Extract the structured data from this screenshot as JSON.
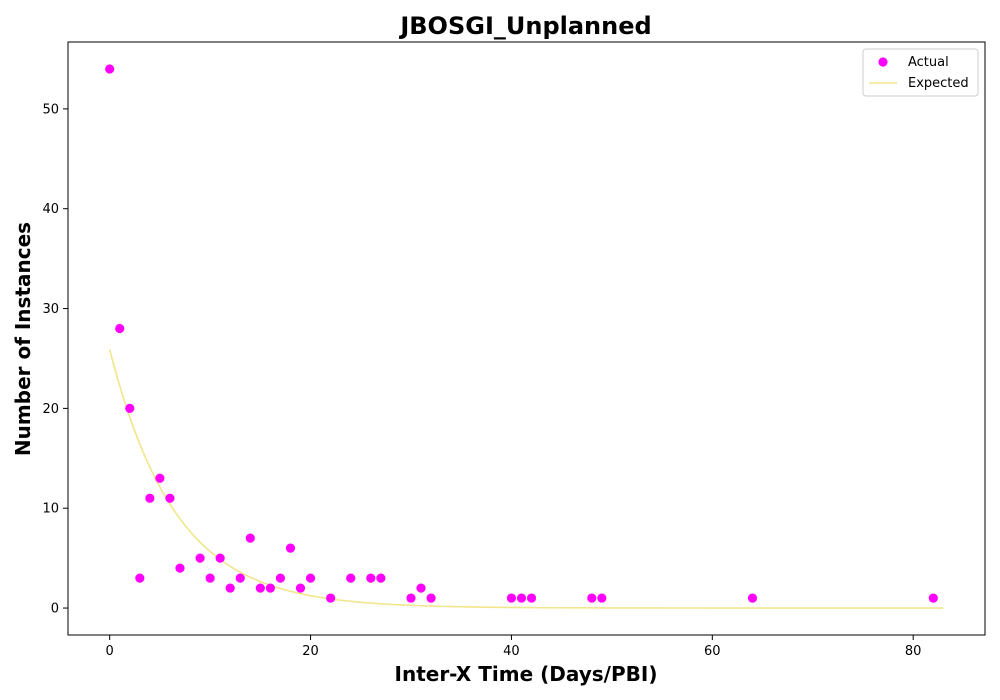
{
  "chart_data": {
    "type": "scatter",
    "title": "JBOSGI_Unplanned",
    "xlabel": "Inter-X Time (Days/PBI)",
    "ylabel": "Number of Instances",
    "xlim": [
      -4.15,
      87.15
    ],
    "ylim": [
      -2.7,
      56.7
    ],
    "x_ticks": [
      0,
      20,
      40,
      60,
      80
    ],
    "y_ticks": [
      0,
      10,
      20,
      30,
      40,
      50
    ],
    "grid": false,
    "legend_position": "top-right",
    "series": [
      {
        "name": "Actual",
        "kind": "scatter",
        "color": "#ff00ff",
        "points": [
          [
            0,
            54
          ],
          [
            1,
            28
          ],
          [
            2,
            20
          ],
          [
            3,
            3
          ],
          [
            4,
            11
          ],
          [
            5,
            13
          ],
          [
            6,
            11
          ],
          [
            7,
            4
          ],
          [
            9,
            5
          ],
          [
            10,
            3
          ],
          [
            11,
            5
          ],
          [
            12,
            2
          ],
          [
            13,
            3
          ],
          [
            14,
            7
          ],
          [
            15,
            2
          ],
          [
            16,
            2
          ],
          [
            17,
            3
          ],
          [
            18,
            6
          ],
          [
            19,
            2
          ],
          [
            20,
            3
          ],
          [
            22,
            1
          ],
          [
            24,
            3
          ],
          [
            26,
            3
          ],
          [
            27,
            3
          ],
          [
            30,
            1
          ],
          [
            31,
            2
          ],
          [
            32,
            1
          ],
          [
            40,
            1
          ],
          [
            41,
            1
          ],
          [
            42,
            1
          ],
          [
            48,
            1
          ],
          [
            49,
            1
          ],
          [
            64,
            1
          ],
          [
            82,
            1
          ]
        ]
      },
      {
        "name": "Expected",
        "kind": "line",
        "color": "#f0e68c",
        "model": "exponential",
        "a": 25.9,
        "k": 0.152,
        "x_range": [
          0,
          83
        ]
      }
    ]
  }
}
